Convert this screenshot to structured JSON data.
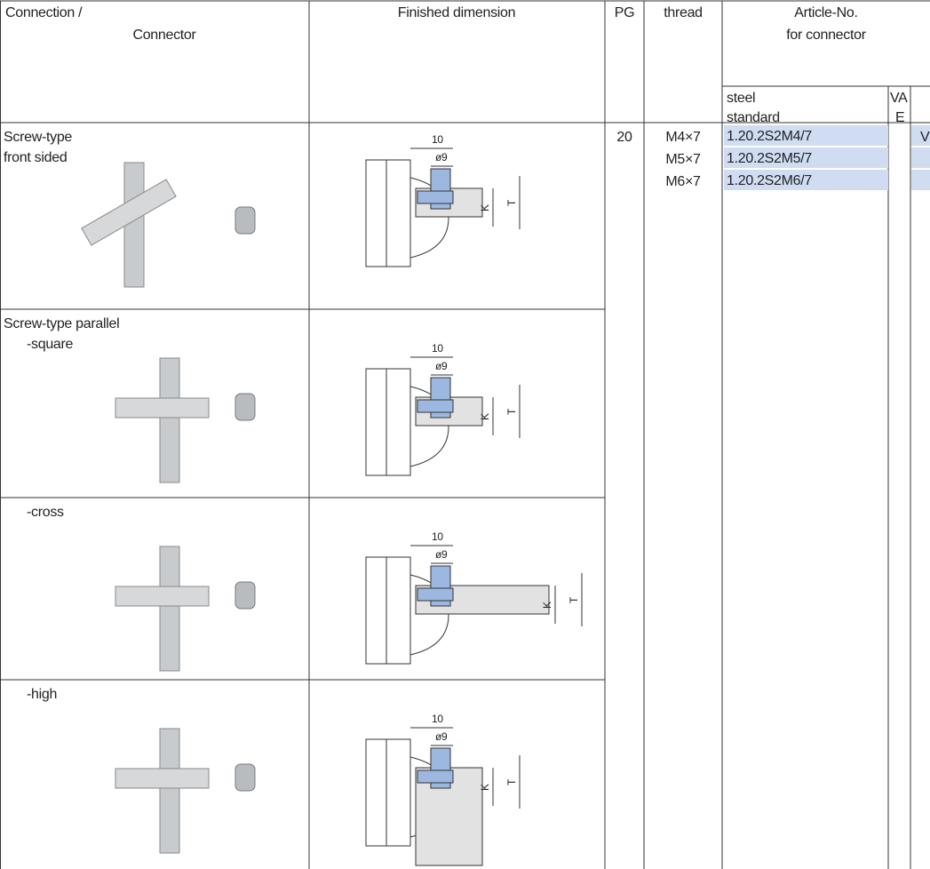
{
  "table": {
    "header": {
      "connection": "Connection /",
      "connector": "Connector",
      "finished_dimension": "Finished dimension",
      "pg": "PG",
      "thread": "thread",
      "article_no": "Article-No.",
      "for_connector": "for connector",
      "steel": "steel",
      "standard": "standard",
      "va": "VA",
      "e": "E"
    },
    "rows": [
      {
        "label": [
          "Screw-type",
          "front sided"
        ]
      },
      {
        "label": [
          "Screw-type parallel",
          "-square"
        ]
      },
      {
        "label": [
          "-cross"
        ]
      },
      {
        "label": [
          "-high"
        ]
      }
    ],
    "drawing_labels": {
      "width": "10",
      "diameter": "ø9",
      "k": "K",
      "t": "T"
    },
    "pg": "20",
    "items": [
      {
        "thread": "M4×7",
        "steel": "1.20.2S2M4/7"
      },
      {
        "thread": "M5×7",
        "steel": "1.20.2S2M5/7"
      },
      {
        "thread": "M6×7",
        "steel": "1.20.2S2M6/7"
      }
    ],
    "extra": "V"
  }
}
